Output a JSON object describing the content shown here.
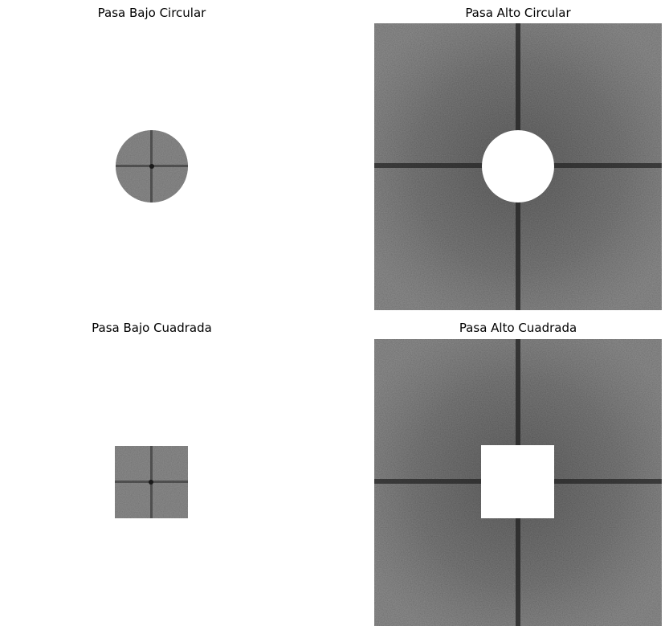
{
  "panels": [
    {
      "title": "Pasa Bajo Circular",
      "filter": "low-pass",
      "shape": "circle"
    },
    {
      "title": "Pasa Alto Circular",
      "filter": "high-pass",
      "shape": "circle"
    },
    {
      "title": "Pasa Bajo Cuadrada",
      "filter": "low-pass",
      "shape": "square"
    },
    {
      "title": "Pasa Alto Cuadrada",
      "filter": "high-pass",
      "shape": "square"
    }
  ],
  "colors": {
    "background": "#ffffff",
    "spectrum_base": "#444444",
    "spectrum_dark_axis": "#1f1f1f",
    "lowpass_tint": "#6b6b6b",
    "mask": "#ffffff"
  }
}
